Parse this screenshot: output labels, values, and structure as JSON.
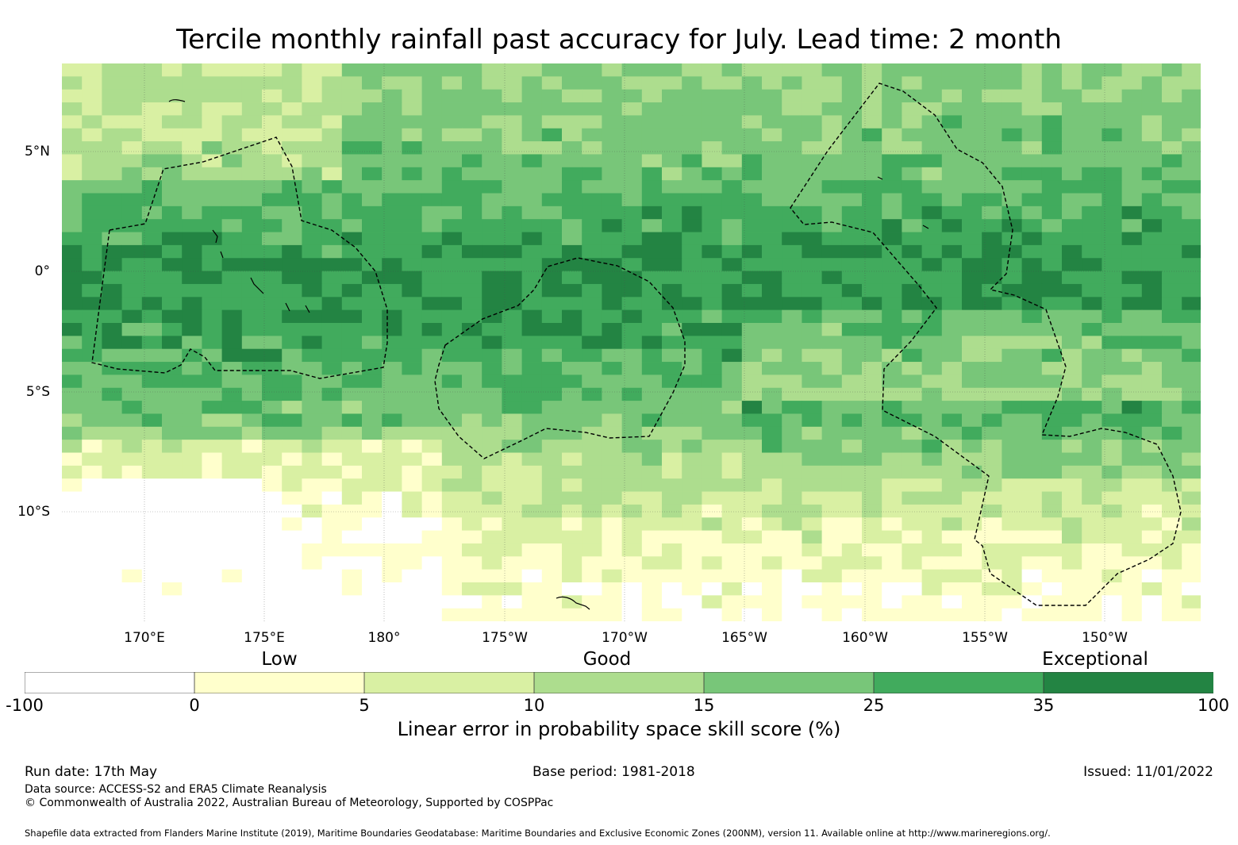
{
  "title": "Tercile monthly rainfall past accuracy for July. Lead time: 2 month",
  "map": {
    "lon_labels": [
      "170°E",
      "175°E",
      "180°",
      "175°W",
      "170°W",
      "165°W",
      "160°W",
      "155°W",
      "150°W"
    ],
    "lat_labels": [
      "5°N",
      "0°",
      "5°S",
      "10°S"
    ],
    "categories": [
      "Low",
      "Good",
      "Exceptional"
    ]
  },
  "colorbar": {
    "ticks": [
      "-100",
      "0",
      "5",
      "10",
      "15",
      "25",
      "35",
      "100"
    ],
    "colors": [
      "#ffffff",
      "#ffffcc",
      "#d9f0a3",
      "#addd8e",
      "#78c679",
      "#41ab5d",
      "#238443"
    ],
    "label": "Linear error in probability space skill score (%)"
  },
  "footer": {
    "run_date": "Run date: 17th May",
    "base_period": "Base period: 1981-2018",
    "issued": "Issued: 11/01/2022",
    "data_source": "Data source: ACCESS-S2 and ERA5 Climate Reanalysis",
    "copyright": "© Commonwealth of Australia 2022, Australian Bureau of Meteorology, Supported by COSPPac",
    "shapefile": "Shapefile data extracted from Flanders Marine Institute (2019), Maritime Boundaries Geodatabase: Maritime Boundaries and Exclusive Economic Zones (200NM), version 11. Available online at http://www.marineregions.org/."
  }
}
